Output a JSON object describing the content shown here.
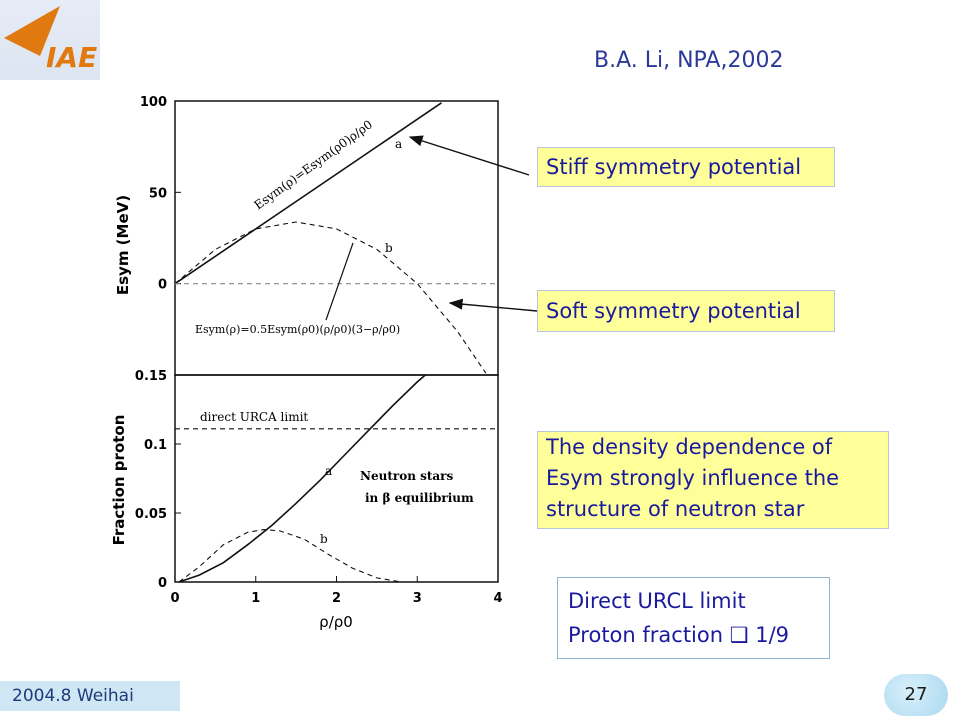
{
  "header": {
    "reference": "B.A. Li, NPA,2002"
  },
  "logo": {
    "text": "IAE"
  },
  "callouts": {
    "stiff": "Stiff symmetry potential",
    "soft": "Soft symmetry potential",
    "density": [
      "The density dependence of",
      "Esym strongly influence the",
      "structure of neutron star"
    ]
  },
  "infobox": {
    "line1": "Direct URCL limit",
    "line2": "Proton fraction ❑ 1/9"
  },
  "footer": {
    "date": "2004.8 Weihai",
    "page": "27"
  },
  "chart_data": [
    {
      "type": "line",
      "panel": "top",
      "ylabel": "Esym (MeV)",
      "ylim": [
        -50,
        100
      ],
      "xlim": [
        0,
        4
      ],
      "yticks": [
        0,
        50,
        100
      ],
      "annotations": {
        "stiff_formula": "Esym(ρ)=Esym(ρ0)ρ/ρ0",
        "soft_formula": "Esym(ρ)=0.5Esym(ρ0)(ρ/ρ0)(3−ρ/ρ0)",
        "label_a": "a",
        "label_b": "b"
      },
      "series": [
        {
          "key": "a",
          "style": "solid",
          "x": [
            0,
            3.3
          ],
          "y": [
            0,
            99
          ]
        },
        {
          "key": "b",
          "style": "dashed",
          "x": [
            0,
            0.5,
            1,
            1.5,
            2,
            2.5,
            3,
            3.5,
            3.85
          ],
          "y": [
            0,
            18.75,
            30,
            33.75,
            30,
            18.75,
            0,
            -26.25,
            -49
          ]
        },
        {
          "key": "zero",
          "style": "dashed-gray",
          "x": [
            0,
            4
          ],
          "y": [
            0,
            0
          ]
        }
      ]
    },
    {
      "type": "line",
      "panel": "bottom",
      "xlabel": "ρ/ρ0",
      "ylabel": "Fraction proton",
      "ylim": [
        0,
        0.15
      ],
      "xlim": [
        0,
        4
      ],
      "xticks": [
        0,
        1,
        2,
        3,
        4
      ],
      "yticks": [
        0,
        0.05,
        0.1,
        0.15
      ],
      "annotations": {
        "urca_label": "direct URCA limit",
        "neutron_stars": "Neutron stars",
        "beta_eq": "in β equilibrium",
        "label_a": "a",
        "label_b": "b"
      },
      "series": [
        {
          "key": "a",
          "style": "solid",
          "x": [
            0.05,
            0.3,
            0.6,
            0.9,
            1.2,
            1.5,
            1.8,
            2.1,
            2.4,
            2.7,
            3.0,
            3.1
          ],
          "y": [
            0,
            0.005,
            0.014,
            0.027,
            0.041,
            0.057,
            0.074,
            0.092,
            0.11,
            0.128,
            0.145,
            0.15
          ]
        },
        {
          "key": "b",
          "style": "dashed",
          "x": [
            0.05,
            0.3,
            0.6,
            0.9,
            1.1,
            1.3,
            1.6,
            1.9,
            2.2,
            2.5,
            2.8
          ],
          "y": [
            0,
            0.011,
            0.027,
            0.036,
            0.038,
            0.037,
            0.031,
            0.02,
            0.01,
            0.003,
            0
          ]
        },
        {
          "key": "urca",
          "style": "dashed",
          "x": [
            0,
            4
          ],
          "y": [
            0.111,
            0.111
          ]
        }
      ]
    }
  ]
}
